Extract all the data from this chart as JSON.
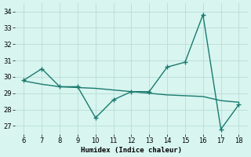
{
  "x_main": [
    6,
    7,
    8,
    9,
    10,
    11,
    12,
    13,
    14,
    15,
    16,
    17,
    18
  ],
  "y_main": [
    29.8,
    30.5,
    29.4,
    29.4,
    27.5,
    28.6,
    29.1,
    29.1,
    30.6,
    30.9,
    33.8,
    26.8,
    28.3
  ],
  "x_trend": [
    6,
    7,
    8,
    9,
    10,
    11,
    12,
    13,
    14,
    15,
    16,
    17,
    18
  ],
  "y_trend": [
    29.75,
    29.55,
    29.4,
    29.35,
    29.3,
    29.2,
    29.1,
    29.0,
    28.9,
    28.85,
    28.8,
    28.55,
    28.45
  ],
  "xlim": [
    5.5,
    18.5
  ],
  "ylim": [
    26.5,
    34.5
  ],
  "yticks": [
    27,
    28,
    29,
    30,
    31,
    32,
    33,
    34
  ],
  "xticks": [
    6,
    7,
    8,
    9,
    10,
    11,
    12,
    13,
    14,
    15,
    16,
    17,
    18
  ],
  "xlabel": "Humidex (Indice chaleur)",
  "line_color": "#1a7a6e",
  "bg_color": "#d8f5f0",
  "grid_color": "#b8ddd8",
  "marker": "+",
  "marker_size": 4,
  "linewidth": 1.0
}
